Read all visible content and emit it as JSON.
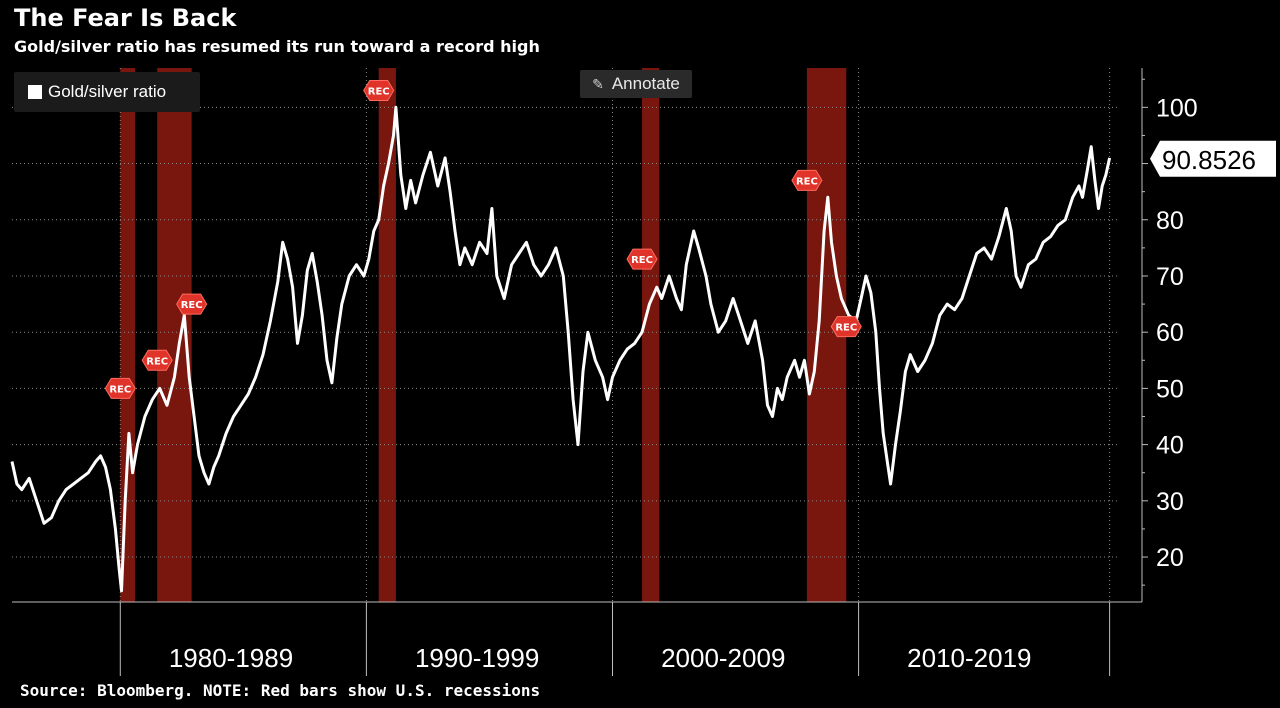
{
  "header": {
    "title": "The Fear Is Back",
    "subtitle": "Gold/silver ratio has resumed its run toward a record high"
  },
  "legend": {
    "label": "Gold/silver ratio",
    "swatch_color": "#ffffff"
  },
  "toolbar": {
    "annotate_label": "Annotate",
    "annotate_icon": "pencil-icon"
  },
  "footer": {
    "source": "Source: Bloomberg. NOTE: Red bars show U.S. recessions"
  },
  "chart_data": {
    "type": "line",
    "title": "The Fear Is Back",
    "subtitle": "Gold/silver ratio has resumed its run toward a record high",
    "xlim": [
      1975.6,
      2020.5
    ],
    "ylim": [
      12,
      107
    ],
    "y_ticks": [
      20,
      30,
      40,
      50,
      60,
      70,
      80,
      90,
      100
    ],
    "y_tick_labels": [
      "20",
      "30",
      "40",
      "50",
      "60",
      "70",
      "80",
      "90",
      "100"
    ],
    "x_groups": [
      {
        "label": "1980-1989",
        "center": 1984.5
      },
      {
        "label": "1990-1999",
        "center": 1994.5
      },
      {
        "label": "2000-2009",
        "center": 2004.5
      },
      {
        "label": "2010-2019",
        "center": 2014.5
      }
    ],
    "x_separators": [
      1980.0,
      1990.0,
      2000.0,
      2010.0
    ],
    "gridlines": "dotted",
    "legend_position": "top-left",
    "last_value_label": "90.8526",
    "last_value": 90.85,
    "line_color": "#ffffff",
    "recession_color": "#8e1a10",
    "rec_marker_label": "REC",
    "recessions": [
      {
        "start": 1980.0,
        "end": 1980.6,
        "label_y": 50
      },
      {
        "start": 1981.5,
        "end": 1982.9,
        "label_y": 55,
        "label_y2": 65
      },
      {
        "start": 1990.5,
        "end": 1991.2,
        "label_y": 103
      },
      {
        "start": 2001.2,
        "end": 2001.9,
        "label_y": 73
      },
      {
        "start": 2007.9,
        "end": 2009.5,
        "label_y": 87,
        "label_y2": 61
      }
    ],
    "series": [
      {
        "name": "Gold/silver ratio",
        "points": [
          [
            1975.6,
            37
          ],
          [
            1975.8,
            33
          ],
          [
            1976.0,
            32
          ],
          [
            1976.3,
            34
          ],
          [
            1976.6,
            30
          ],
          [
            1976.9,
            26
          ],
          [
            1977.2,
            27
          ],
          [
            1977.5,
            30
          ],
          [
            1977.8,
            32
          ],
          [
            1978.1,
            33
          ],
          [
            1978.4,
            34
          ],
          [
            1978.7,
            35
          ],
          [
            1979.0,
            37
          ],
          [
            1979.2,
            38
          ],
          [
            1979.4,
            36
          ],
          [
            1979.6,
            32
          ],
          [
            1979.8,
            25
          ],
          [
            1979.95,
            18
          ],
          [
            1980.05,
            14
          ],
          [
            1980.2,
            30
          ],
          [
            1980.35,
            42
          ],
          [
            1980.5,
            35
          ],
          [
            1980.7,
            40
          ],
          [
            1981.0,
            45
          ],
          [
            1981.3,
            48
          ],
          [
            1981.6,
            50
          ],
          [
            1981.9,
            47
          ],
          [
            1982.2,
            52
          ],
          [
            1982.4,
            58
          ],
          [
            1982.6,
            63
          ],
          [
            1982.8,
            52
          ],
          [
            1983.0,
            45
          ],
          [
            1983.2,
            38
          ],
          [
            1983.4,
            35
          ],
          [
            1983.6,
            33
          ],
          [
            1983.8,
            36
          ],
          [
            1984.0,
            38
          ],
          [
            1984.3,
            42
          ],
          [
            1984.6,
            45
          ],
          [
            1984.9,
            47
          ],
          [
            1985.2,
            49
          ],
          [
            1985.5,
            52
          ],
          [
            1985.8,
            56
          ],
          [
            1986.1,
            62
          ],
          [
            1986.4,
            69
          ],
          [
            1986.6,
            76
          ],
          [
            1986.8,
            73
          ],
          [
            1987.0,
            68
          ],
          [
            1987.2,
            58
          ],
          [
            1987.4,
            63
          ],
          [
            1987.6,
            71
          ],
          [
            1987.8,
            74
          ],
          [
            1988.0,
            69
          ],
          [
            1988.2,
            63
          ],
          [
            1988.4,
            55
          ],
          [
            1988.6,
            51
          ],
          [
            1988.8,
            59
          ],
          [
            1989.0,
            65
          ],
          [
            1989.3,
            70
          ],
          [
            1989.6,
            72
          ],
          [
            1989.9,
            70
          ],
          [
            1990.1,
            73
          ],
          [
            1990.3,
            78
          ],
          [
            1990.5,
            80
          ],
          [
            1990.7,
            86
          ],
          [
            1990.9,
            90
          ],
          [
            1991.1,
            95
          ],
          [
            1991.2,
            100
          ],
          [
            1991.4,
            88
          ],
          [
            1991.6,
            82
          ],
          [
            1991.8,
            87
          ],
          [
            1992.0,
            83
          ],
          [
            1992.3,
            88
          ],
          [
            1992.6,
            92
          ],
          [
            1992.9,
            86
          ],
          [
            1993.2,
            91
          ],
          [
            1993.4,
            85
          ],
          [
            1993.6,
            78
          ],
          [
            1993.8,
            72
          ],
          [
            1994.0,
            75
          ],
          [
            1994.3,
            72
          ],
          [
            1994.6,
            76
          ],
          [
            1994.9,
            74
          ],
          [
            1995.1,
            82
          ],
          [
            1995.3,
            70
          ],
          [
            1995.6,
            66
          ],
          [
            1995.9,
            72
          ],
          [
            1996.2,
            74
          ],
          [
            1996.5,
            76
          ],
          [
            1996.8,
            72
          ],
          [
            1997.1,
            70
          ],
          [
            1997.4,
            72
          ],
          [
            1997.7,
            75
          ],
          [
            1998.0,
            70
          ],
          [
            1998.2,
            60
          ],
          [
            1998.4,
            48
          ],
          [
            1998.6,
            40
          ],
          [
            1998.8,
            53
          ],
          [
            1999.0,
            60
          ],
          [
            1999.3,
            55
          ],
          [
            1999.6,
            52
          ],
          [
            1999.8,
            48
          ],
          [
            2000.0,
            52
          ],
          [
            2000.3,
            55
          ],
          [
            2000.6,
            57
          ],
          [
            2000.9,
            58
          ],
          [
            2001.2,
            60
          ],
          [
            2001.5,
            65
          ],
          [
            2001.8,
            68
          ],
          [
            2002.0,
            66
          ],
          [
            2002.3,
            70
          ],
          [
            2002.6,
            66
          ],
          [
            2002.8,
            64
          ],
          [
            2003.0,
            72
          ],
          [
            2003.3,
            78
          ],
          [
            2003.5,
            75
          ],
          [
            2003.8,
            70
          ],
          [
            2004.0,
            65
          ],
          [
            2004.3,
            60
          ],
          [
            2004.6,
            62
          ],
          [
            2004.9,
            66
          ],
          [
            2005.2,
            62
          ],
          [
            2005.5,
            58
          ],
          [
            2005.8,
            62
          ],
          [
            2006.1,
            55
          ],
          [
            2006.3,
            47
          ],
          [
            2006.5,
            45
          ],
          [
            2006.7,
            50
          ],
          [
            2006.9,
            48
          ],
          [
            2007.1,
            52
          ],
          [
            2007.4,
            55
          ],
          [
            2007.6,
            52
          ],
          [
            2007.8,
            55
          ],
          [
            2008.0,
            49
          ],
          [
            2008.2,
            53
          ],
          [
            2008.4,
            62
          ],
          [
            2008.6,
            78
          ],
          [
            2008.75,
            84
          ],
          [
            2008.9,
            76
          ],
          [
            2009.1,
            70
          ],
          [
            2009.3,
            66
          ],
          [
            2009.6,
            63
          ],
          [
            2009.9,
            62
          ],
          [
            2010.1,
            66
          ],
          [
            2010.3,
            70
          ],
          [
            2010.5,
            67
          ],
          [
            2010.7,
            60
          ],
          [
            2010.85,
            50
          ],
          [
            2011.0,
            42
          ],
          [
            2011.2,
            36
          ],
          [
            2011.3,
            33
          ],
          [
            2011.5,
            40
          ],
          [
            2011.7,
            46
          ],
          [
            2011.9,
            53
          ],
          [
            2012.1,
            56
          ],
          [
            2012.4,
            53
          ],
          [
            2012.7,
            55
          ],
          [
            2013.0,
            58
          ],
          [
            2013.3,
            63
          ],
          [
            2013.6,
            65
          ],
          [
            2013.9,
            64
          ],
          [
            2014.2,
            66
          ],
          [
            2014.5,
            70
          ],
          [
            2014.8,
            74
          ],
          [
            2015.1,
            75
          ],
          [
            2015.4,
            73
          ],
          [
            2015.7,
            77
          ],
          [
            2016.0,
            82
          ],
          [
            2016.2,
            78
          ],
          [
            2016.4,
            70
          ],
          [
            2016.6,
            68
          ],
          [
            2016.9,
            72
          ],
          [
            2017.2,
            73
          ],
          [
            2017.5,
            76
          ],
          [
            2017.8,
            77
          ],
          [
            2018.1,
            79
          ],
          [
            2018.4,
            80
          ],
          [
            2018.7,
            84
          ],
          [
            2018.95,
            86
          ],
          [
            2019.1,
            84
          ],
          [
            2019.3,
            89
          ],
          [
            2019.45,
            93
          ],
          [
            2019.6,
            87
          ],
          [
            2019.75,
            82
          ],
          [
            2019.9,
            86
          ],
          [
            2020.05,
            88
          ],
          [
            2020.2,
            91
          ]
        ]
      }
    ]
  }
}
